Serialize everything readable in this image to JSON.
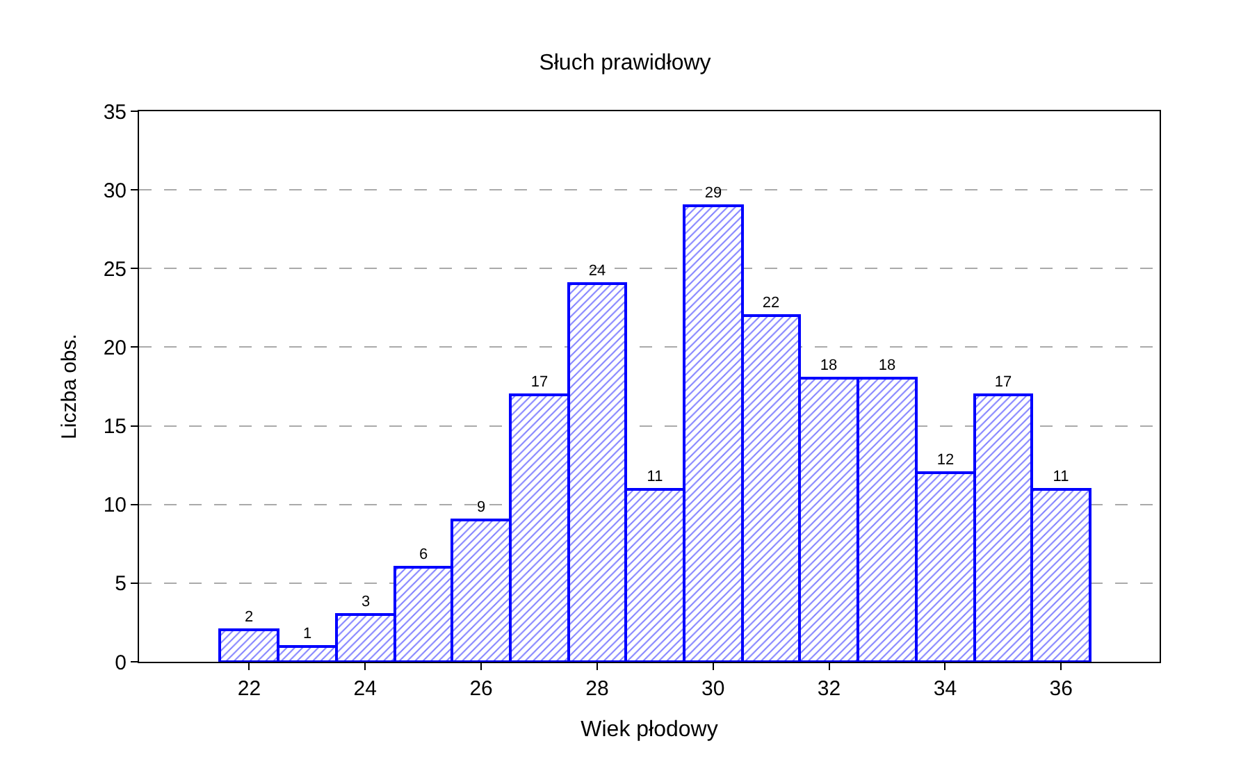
{
  "chart_data": {
    "type": "histogram",
    "title": "Słuch prawidłowy",
    "xlabel": "Wiek płodowy",
    "ylabel": "Liczba obs.",
    "bins": [
      21.5,
      22.5,
      23.5,
      24.5,
      25.5,
      26.5,
      27.5,
      28.5,
      29.5,
      30.5,
      31.5,
      32.5,
      33.5,
      34.5,
      35.5,
      36.5
    ],
    "values": [
      2,
      1,
      3,
      6,
      9,
      17,
      24,
      11,
      29,
      22,
      18,
      18,
      12,
      17,
      11
    ],
    "color": "#0000ff",
    "data_labels": true,
    "xlim": [
      20.1,
      37.7
    ],
    "xticks": [
      22,
      24,
      26,
      28,
      30,
      32,
      34,
      36
    ],
    "ylim": [
      0,
      35
    ],
    "yticks": [
      0,
      5,
      10,
      15,
      20,
      25,
      30,
      35
    ],
    "grid": "y"
  }
}
